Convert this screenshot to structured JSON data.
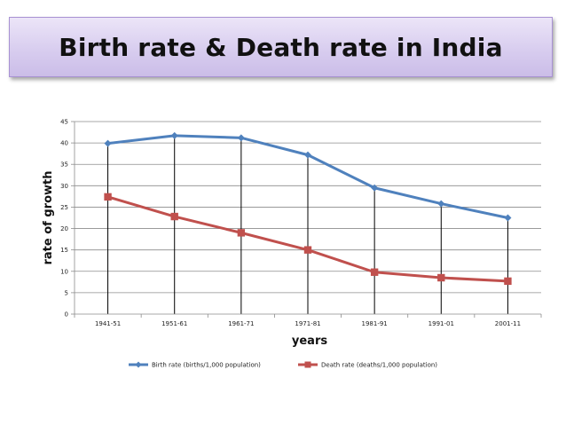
{
  "page": {
    "title": "Birth rate & Death rate in India"
  },
  "colors": {
    "banner_fill": "#d8cdef",
    "banner_border": "#a892d3",
    "birth_series": "#4f81bd",
    "death_series": "#c0504d"
  },
  "chart_data": {
    "type": "line",
    "title": "",
    "xlabel": "years",
    "ylabel": "rate of growth",
    "categories": [
      "1941-51",
      "1951-61",
      "1961-71",
      "1971-81",
      "1981-91",
      "1991-01",
      "2001-11"
    ],
    "ylim": [
      0,
      45
    ],
    "yticks": [
      0,
      5,
      10,
      15,
      20,
      25,
      30,
      35,
      40,
      45
    ],
    "grid": true,
    "drop_lines": true,
    "legend_position": "bottom",
    "series": [
      {
        "name": "Birth rate (births/1,000 population)",
        "marker": "diamond",
        "color": "#4f81bd",
        "values": [
          39.9,
          41.7,
          41.2,
          37.2,
          29.5,
          25.8,
          22.5
        ]
      },
      {
        "name": "Death rate (deaths/1,000 population)",
        "marker": "square",
        "color": "#c0504d",
        "values": [
          27.4,
          22.8,
          19.0,
          15.0,
          9.8,
          8.5,
          7.7
        ]
      }
    ]
  }
}
